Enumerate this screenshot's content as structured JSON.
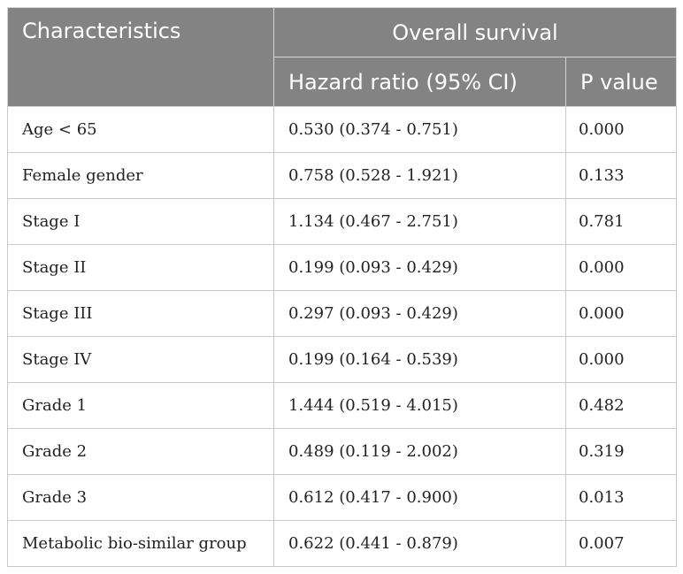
{
  "table": {
    "header": {
      "characteristics": "Characteristics",
      "overall_survival": "Overall survival",
      "hazard_ratio": "Hazard ratio (95% CI)",
      "p_value": "P value"
    },
    "rows": [
      {
        "characteristic": "Age < 65",
        "hazard_ratio": "0.530 (0.374 - 0.751)",
        "p_value": "0.000"
      },
      {
        "characteristic": "Female gender",
        "hazard_ratio": "0.758 (0.528 - 1.921)",
        "p_value": "0.133"
      },
      {
        "characteristic": "Stage I",
        "hazard_ratio": "1.134 (0.467 - 2.751)",
        "p_value": "0.781"
      },
      {
        "characteristic": "Stage II",
        "hazard_ratio": "0.199 (0.093 - 0.429)",
        "p_value": "0.000"
      },
      {
        "characteristic": "Stage III",
        "hazard_ratio": "0.297 (0.093 - 0.429)",
        "p_value": "0.000"
      },
      {
        "characteristic": "Stage IV",
        "hazard_ratio": "0.199 (0.164 - 0.539)",
        "p_value": "0.000"
      },
      {
        "characteristic": "Grade 1",
        "hazard_ratio": "1.444 (0.519 - 4.015)",
        "p_value": "0.482"
      },
      {
        "characteristic": "Grade 2",
        "hazard_ratio": "0.489 (0.119 - 2.002)",
        "p_value": "0.319"
      },
      {
        "characteristic": "Grade 3",
        "hazard_ratio": "0.612 (0.417 - 0.900)",
        "p_value": "0.013"
      },
      {
        "characteristic": "Metabolic bio-similar group",
        "hazard_ratio": "0.622 (0.441 - 0.879)",
        "p_value": "0.007"
      }
    ]
  }
}
